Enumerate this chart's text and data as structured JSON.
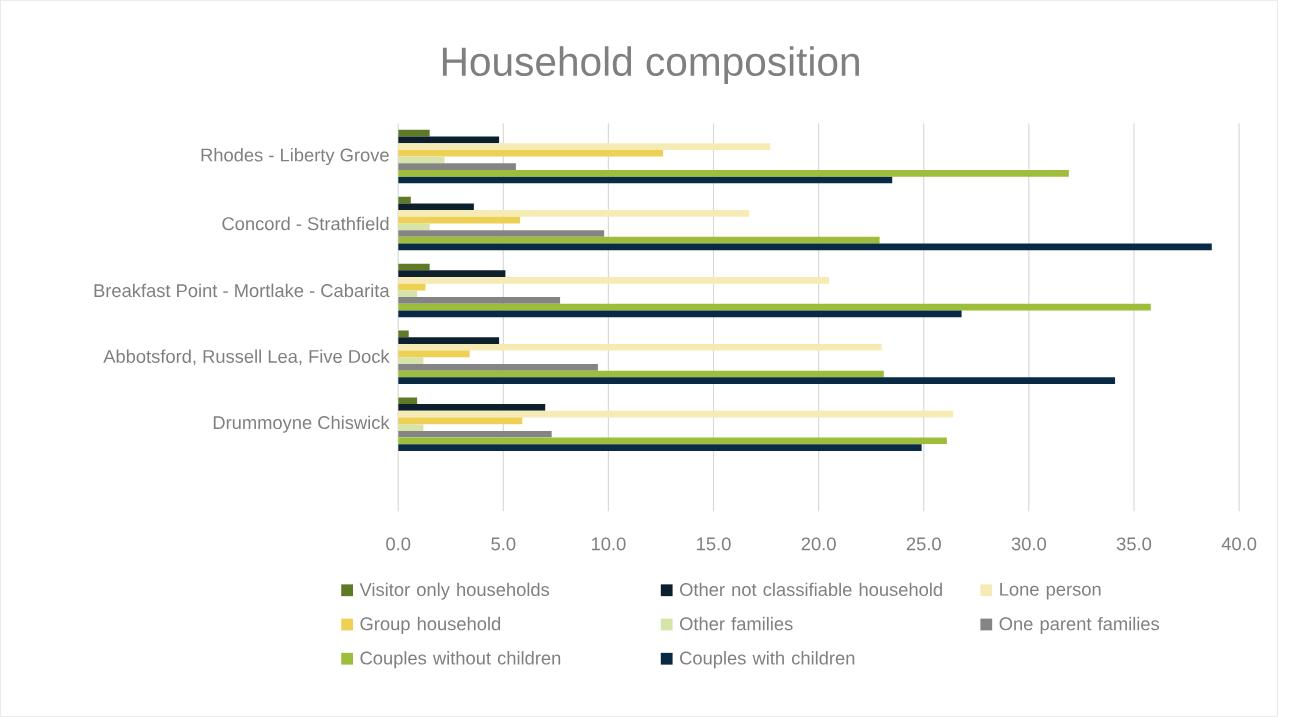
{
  "chart_data": {
    "type": "bar",
    "orientation": "horizontal",
    "title": "Household composition",
    "categories": [
      "Rhodes - Liberty Grove",
      "Concord - Strathfield",
      "Breakfast Point - Mortlake - Cabarita",
      "Abbotsford, Russell Lea, Five Dock",
      "Drummoyne Chiswick"
    ],
    "series": [
      {
        "name": "Visitor only households",
        "color": "#5e7a26",
        "values": [
          1.5,
          0.6,
          1.5,
          0.5,
          0.9
        ]
      },
      {
        "name": "Other not classifiable household",
        "color": "#0c1f2c",
        "values": [
          4.8,
          3.6,
          5.1,
          4.8,
          7.0
        ]
      },
      {
        "name": "Lone person",
        "color": "#f7ebb5",
        "values": [
          17.7,
          16.7,
          20.5,
          23.0,
          26.4
        ]
      },
      {
        "name": "Group household",
        "color": "#eed054",
        "values": [
          12.6,
          5.8,
          1.3,
          3.4,
          5.9
        ]
      },
      {
        "name": "Other families",
        "color": "#d6e3a9",
        "values": [
          2.2,
          1.5,
          0.9,
          1.2,
          1.2
        ]
      },
      {
        "name": "One parent families",
        "color": "#848484",
        "values": [
          5.6,
          9.8,
          7.7,
          9.5,
          7.3
        ]
      },
      {
        "name": "Couples without children",
        "color": "#9dbd3b",
        "values": [
          31.9,
          22.9,
          35.8,
          23.1,
          26.1
        ]
      },
      {
        "name": "Couples with children",
        "color": "#082a44",
        "values": [
          23.5,
          38.7,
          26.8,
          34.1,
          24.9
        ]
      }
    ],
    "xlim": [
      0,
      40
    ],
    "xticks": [
      {
        "value": 0,
        "label": "0.0"
      },
      {
        "value": 5,
        "label": "5.0"
      },
      {
        "value": 10,
        "label": "10.0"
      },
      {
        "value": 15,
        "label": "15.0"
      },
      {
        "value": 20,
        "label": "20.0"
      },
      {
        "value": 25,
        "label": "25.0"
      },
      {
        "value": 30,
        "label": "30.0"
      },
      {
        "value": 35,
        "label": "35.0"
      },
      {
        "value": 40,
        "label": "40.0"
      }
    ],
    "grid": "x",
    "legend": "bottom"
  }
}
